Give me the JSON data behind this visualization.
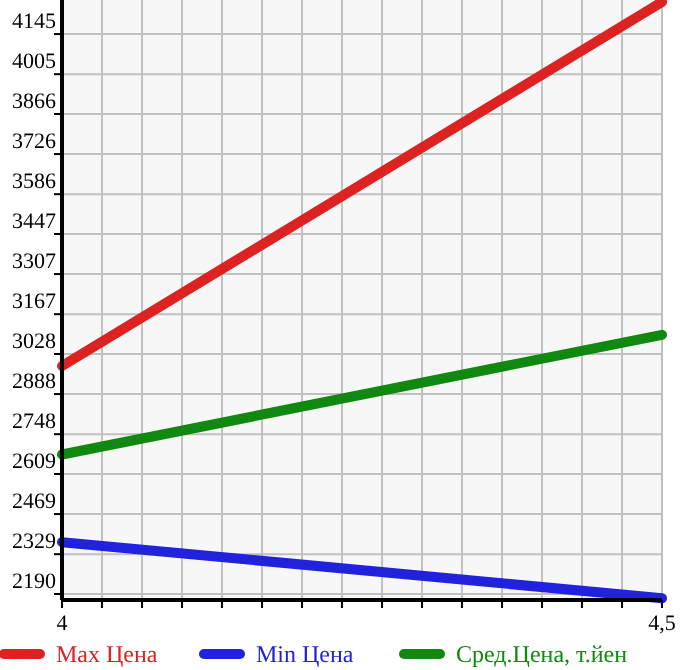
{
  "chart_data": {
    "type": "line",
    "x": [
      4,
      4.5
    ],
    "series": [
      {
        "name": "Max Цена",
        "color": "#dd2222",
        "values": [
          2986,
          4257
        ]
      },
      {
        "name": "Min Цена",
        "color": "#2222dd",
        "values": [
          2371,
          2175
        ]
      },
      {
        "name": "Сред.Цена, т.йен",
        "color": "#118811",
        "values": [
          2677,
          3095
        ]
      }
    ],
    "xlim": [
      4,
      4.5
    ],
    "xticks": [
      {
        "value": 4,
        "label": "4"
      },
      {
        "value": 4.0333,
        "label": null
      },
      {
        "value": 4.0667,
        "label": null
      },
      {
        "value": 4.1,
        "label": null
      },
      {
        "value": 4.1333,
        "label": null
      },
      {
        "value": 4.1667,
        "label": null
      },
      {
        "value": 4.2,
        "label": null
      },
      {
        "value": 4.2333,
        "label": null
      },
      {
        "value": 4.2667,
        "label": null
      },
      {
        "value": 4.3,
        "label": null
      },
      {
        "value": 4.3333,
        "label": null
      },
      {
        "value": 4.3667,
        "label": null
      },
      {
        "value": 4.4,
        "label": null
      },
      {
        "value": 4.4333,
        "label": null
      },
      {
        "value": 4.4667,
        "label": null
      },
      {
        "value": 4.5,
        "label": "4,5"
      }
    ],
    "ylim": [
      2169,
      4264
    ],
    "yticks": [
      2190,
      2329,
      2469,
      2609,
      2748,
      2888,
      3028,
      3167,
      3307,
      3447,
      3586,
      3726,
      3866,
      4005,
      4145
    ],
    "grid": true,
    "legend": "bottom",
    "line_style": "solid"
  }
}
